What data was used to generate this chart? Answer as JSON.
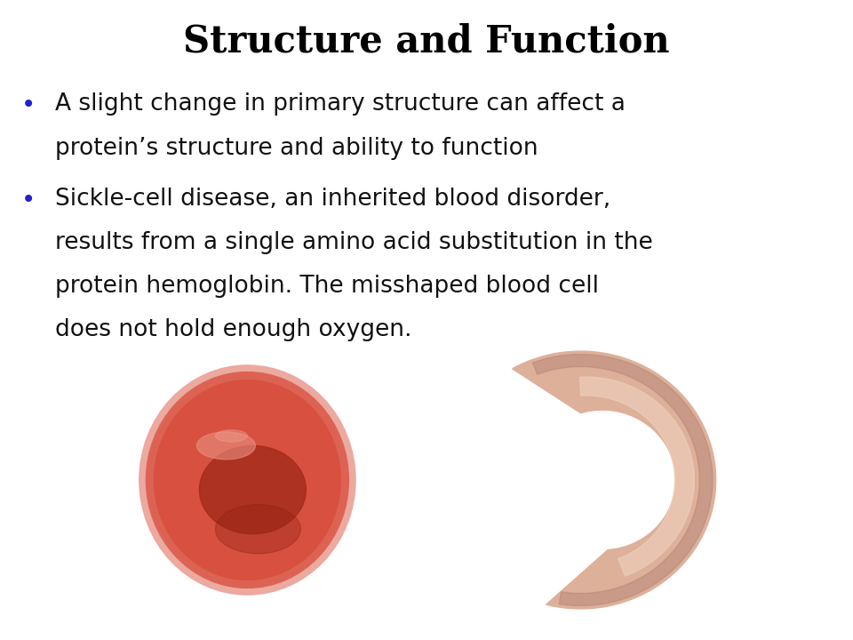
{
  "title": "Structure and Function",
  "title_fontsize": 30,
  "title_color": "#000000",
  "title_fontstyle": "bold",
  "title_fontfamily": "serif",
  "bullet_color": "#2222cc",
  "text_color": "#111111",
  "text_fontsize": 19,
  "text_fontfamily": "sans-serif",
  "background_color": "#ffffff",
  "bullet1_line1": "A slight change in primary structure can affect a",
  "bullet1_line2": "protein’s structure and ability to function",
  "bullet2_line1": "Sickle-cell disease, an inherited blood disorder,",
  "bullet2_line2": "results from a single amino acid substitution in the",
  "bullet2_line3": "protein hemoglobin. The misshaped blood cell",
  "bullet2_line4": "does not hold enough oxygen.",
  "img_bg_color": "#6B3510",
  "rbc_color_outer": "#D84830",
  "rbc_color_inner": "#B03020",
  "rbc_color_light": "#E87060",
  "sickle_color_main": "#DDB09A",
  "sickle_color_dark": "#B08070",
  "sickle_color_light": "#EED0BC"
}
